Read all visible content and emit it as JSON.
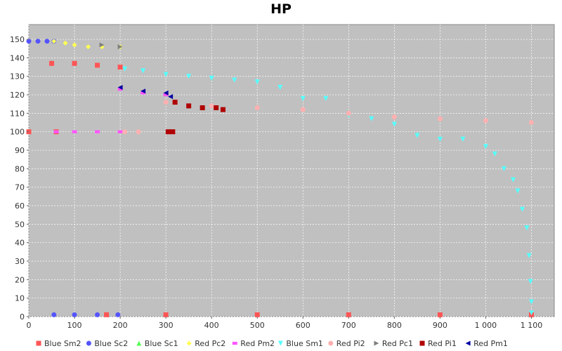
{
  "chart_data": {
    "type": "scatter",
    "title": "HP",
    "xlabel": "",
    "ylabel": "",
    "xlim": [
      0,
      1150
    ],
    "ylim": [
      0,
      158
    ],
    "xticks": [
      0,
      100,
      200,
      300,
      400,
      500,
      600,
      700,
      800,
      900,
      1000,
      1100
    ],
    "xtick_labels": [
      "0",
      "100",
      "200",
      "300",
      "400",
      "500",
      "600",
      "700",
      "800",
      "900",
      "1 000",
      "1 100"
    ],
    "yticks": [
      0,
      10,
      20,
      30,
      40,
      50,
      60,
      70,
      80,
      90,
      100,
      110,
      120,
      130,
      140,
      150
    ],
    "grid": true,
    "legend_position": "bottom",
    "background": "#c0c0c0",
    "series": [
      {
        "name": "Blue Sm2",
        "color": "#ff5555",
        "marker": "square",
        "points": [
          [
            50,
            137
          ],
          [
            100,
            137
          ],
          [
            150,
            136
          ],
          [
            200,
            135
          ],
          [
            0,
            100
          ],
          [
            60,
            100
          ],
          [
            170,
            1
          ],
          [
            300,
            1
          ],
          [
            500,
            1
          ],
          [
            700,
            1
          ],
          [
            900,
            1
          ],
          [
            1100,
            1
          ]
        ]
      },
      {
        "name": "Blue Sc2",
        "color": "#5555ff",
        "marker": "circle",
        "points": [
          [
            0,
            149
          ],
          [
            20,
            149
          ],
          [
            40,
            149
          ],
          [
            55,
            149
          ],
          [
            55,
            1
          ],
          [
            100,
            1
          ],
          [
            150,
            1
          ],
          [
            195,
            1
          ]
        ]
      },
      {
        "name": "Blue Sc1",
        "color": "#55ff55",
        "marker": "triangle-up",
        "points": []
      },
      {
        "name": "Red Pc2",
        "color": "#ffff55",
        "marker": "diamond",
        "points": [
          [
            55,
            149
          ],
          [
            80,
            148
          ],
          [
            100,
            147
          ],
          [
            130,
            146
          ],
          [
            160,
            146
          ],
          [
            200,
            146
          ]
        ]
      },
      {
        "name": "Red Pm2",
        "color": "#ff55ff",
        "marker": "rect",
        "points": [
          [
            200,
            123
          ],
          [
            250,
            121
          ],
          [
            300,
            120
          ],
          [
            60,
            100
          ],
          [
            100,
            100
          ],
          [
            150,
            100
          ],
          [
            200,
            100
          ]
        ]
      },
      {
        "name": "Blue Sm1",
        "color": "#55ffff",
        "marker": "triangle-down",
        "points": [
          [
            210,
            134
          ],
          [
            250,
            133
          ],
          [
            300,
            131
          ],
          [
            350,
            130
          ],
          [
            400,
            129
          ],
          [
            450,
            128
          ],
          [
            500,
            127
          ],
          [
            550,
            124
          ],
          [
            600,
            118
          ],
          [
            650,
            118
          ],
          [
            700,
            109
          ],
          [
            750,
            107
          ],
          [
            800,
            104
          ],
          [
            850,
            98
          ],
          [
            900,
            96
          ],
          [
            950,
            96
          ],
          [
            1000,
            92
          ],
          [
            1020,
            88
          ],
          [
            1040,
            80
          ],
          [
            1060,
            74
          ],
          [
            1070,
            68
          ],
          [
            1080,
            58
          ],
          [
            1090,
            48
          ],
          [
            1095,
            33
          ],
          [
            1098,
            19
          ],
          [
            1100,
            8
          ],
          [
            1100,
            2
          ]
        ]
      },
      {
        "name": "Red Pi2",
        "color": "#ffb0b0",
        "marker": "circle",
        "points": [
          [
            300,
            116
          ],
          [
            400,
            114
          ],
          [
            500,
            113
          ],
          [
            600,
            112
          ],
          [
            700,
            110
          ],
          [
            800,
            108
          ],
          [
            900,
            107
          ],
          [
            1000,
            106
          ],
          [
            1100,
            105
          ],
          [
            210,
            100
          ],
          [
            240,
            100
          ],
          [
            310,
            100
          ]
        ]
      },
      {
        "name": "Red Pc1",
        "color": "#808080",
        "marker": "triangle-right",
        "points": [
          [
            160,
            147
          ],
          [
            200,
            146
          ]
        ]
      },
      {
        "name": "Red Pi1",
        "color": "#b00000",
        "marker": "square",
        "points": [
          [
            320,
            116
          ],
          [
            350,
            114
          ],
          [
            380,
            113
          ],
          [
            410,
            113
          ],
          [
            425,
            112
          ],
          [
            305,
            100
          ],
          [
            315,
            100
          ]
        ]
      },
      {
        "name": "Red Pm1",
        "color": "#0000a0",
        "marker": "triangle-left",
        "points": [
          [
            200,
            124
          ],
          [
            250,
            122
          ],
          [
            300,
            121
          ],
          [
            310,
            119
          ]
        ]
      }
    ]
  }
}
